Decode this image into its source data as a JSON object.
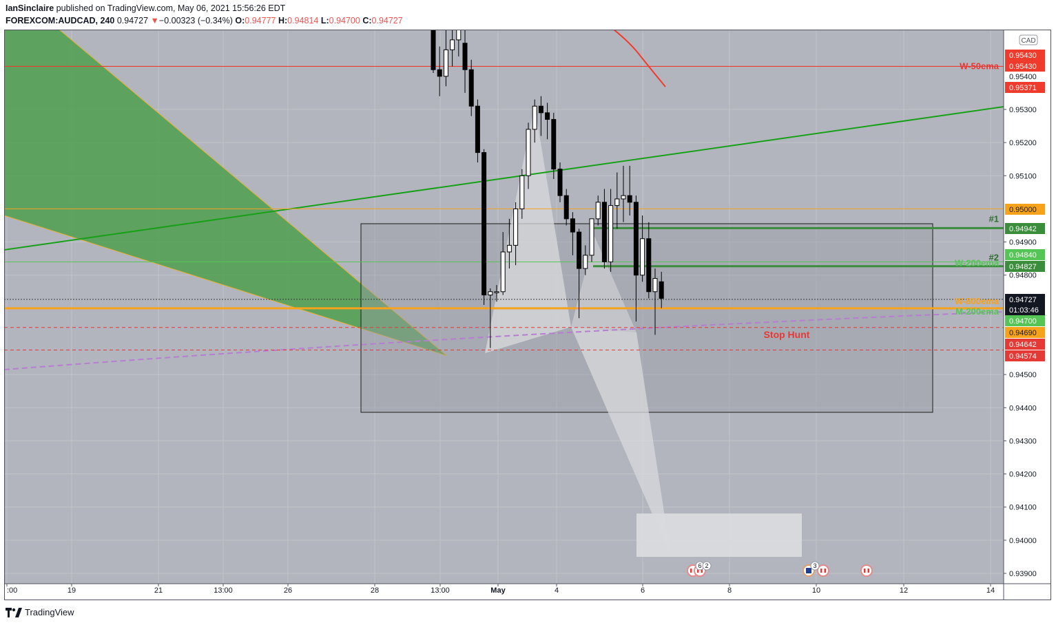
{
  "header": {
    "author": "IanSinclaire",
    "published_text": "published on TradingView.com, May 06, 2021 15:56:26 EDT",
    "symbol": "FOREXCOM:AUDCAD, 240",
    "last": "0.94727",
    "change_arrow": "▼",
    "change": "−0.00323 (−0.34%)",
    "open_label": "O:",
    "open": "0.94777",
    "high_label": "H:",
    "high": "0.94814",
    "low_label": "L:",
    "low": "0.94700",
    "close_label": "C:",
    "close": "0.94727"
  },
  "footer": {
    "brand": "TradingView",
    "logo_icon": "tradingview-logo-icon"
  },
  "colors": {
    "chart_bg": "#b2b5be",
    "frame_bg": "#ffffff",
    "up_candle": "#ffffff",
    "down_candle": "#000000",
    "red_line": "#ef3b2c",
    "green_line": "#16a016",
    "orange_line": "#f7a21b",
    "dark_green": "#3a8d3a",
    "light_green": "#55c655",
    "purple_dash": "#b67dd1",
    "green_wedge": "#4f9f4f"
  },
  "chart_data": {
    "type": "candlestick",
    "currency_badge": "CAD",
    "y_range": [
      0.9385,
      0.9555
    ],
    "y_ticks": [
      "0.95300",
      "0.95200",
      "0.95100",
      "0.94900",
      "0.94800",
      "0.94500",
      "0.94400",
      "0.94300",
      "0.94200",
      "0.94100",
      "0.94000",
      "0.93900"
    ],
    "x_ticks": [
      ":00",
      "19",
      "21",
      "13:00",
      "26",
      "28",
      "13:00",
      "May",
      "4",
      "6",
      "8",
      "10",
      "12",
      "14"
    ],
    "candles": [
      {
        "o": 0.9556,
        "h": 0.9565,
        "l": 0.9541,
        "c": 0.9542
      },
      {
        "o": 0.9542,
        "h": 0.9549,
        "l": 0.9534,
        "c": 0.954
      },
      {
        "o": 0.954,
        "h": 0.9558,
        "l": 0.9537,
        "c": 0.9548
      },
      {
        "o": 0.9548,
        "h": 0.9556,
        "l": 0.9543,
        "c": 0.9551
      },
      {
        "o": 0.9551,
        "h": 0.9556,
        "l": 0.9546,
        "c": 0.9554
      },
      {
        "o": 0.955,
        "h": 0.9558,
        "l": 0.9535,
        "c": 0.9542
      },
      {
        "o": 0.9542,
        "h": 0.9545,
        "l": 0.9528,
        "c": 0.9531
      },
      {
        "o": 0.9531,
        "h": 0.9533,
        "l": 0.9514,
        "c": 0.9517
      },
      {
        "o": 0.9517,
        "h": 0.9518,
        "l": 0.9471,
        "c": 0.9474
      },
      {
        "o": 0.9474,
        "h": 0.9476,
        "l": 0.9458,
        "c": 0.9475
      },
      {
        "o": 0.9475,
        "h": 0.9477,
        "l": 0.9472,
        "c": 0.9475
      },
      {
        "o": 0.9475,
        "h": 0.9493,
        "l": 0.9474,
        "c": 0.9487
      },
      {
        "o": 0.9487,
        "h": 0.9497,
        "l": 0.9482,
        "c": 0.9489
      },
      {
        "o": 0.9489,
        "h": 0.9502,
        "l": 0.9483,
        "c": 0.95
      },
      {
        "o": 0.95,
        "h": 0.9512,
        "l": 0.9497,
        "c": 0.951
      },
      {
        "o": 0.951,
        "h": 0.9526,
        "l": 0.9506,
        "c": 0.9524
      },
      {
        "o": 0.9524,
        "h": 0.9533,
        "l": 0.952,
        "c": 0.9531
      },
      {
        "o": 0.9531,
        "h": 0.9534,
        "l": 0.9522,
        "c": 0.9529
      },
      {
        "o": 0.9529,
        "h": 0.9532,
        "l": 0.9521,
        "c": 0.9527
      },
      {
        "o": 0.9527,
        "h": 0.9529,
        "l": 0.9509,
        "c": 0.9512
      },
      {
        "o": 0.9512,
        "h": 0.9514,
        "l": 0.9502,
        "c": 0.9504
      },
      {
        "o": 0.9504,
        "h": 0.9506,
        "l": 0.9495,
        "c": 0.9497
      },
      {
        "o": 0.9497,
        "h": 0.9499,
        "l": 0.9486,
        "c": 0.9493
      },
      {
        "o": 0.9493,
        "h": 0.9494,
        "l": 0.9467,
        "c": 0.9482
      },
      {
        "o": 0.9482,
        "h": 0.9489,
        "l": 0.948,
        "c": 0.9486
      },
      {
        "o": 0.9486,
        "h": 0.9497,
        "l": 0.9484,
        "c": 0.9497
      },
      {
        "o": 0.9497,
        "h": 0.9504,
        "l": 0.9495,
        "c": 0.9502
      },
      {
        "o": 0.9502,
        "h": 0.9506,
        "l": 0.9482,
        "c": 0.9484
      },
      {
        "o": 0.9484,
        "h": 0.9506,
        "l": 0.9481,
        "c": 0.9501
      },
      {
        "o": 0.9501,
        "h": 0.9511,
        "l": 0.9494,
        "c": 0.9503
      },
      {
        "o": 0.9503,
        "h": 0.9513,
        "l": 0.9496,
        "c": 0.9504
      },
      {
        "o": 0.9504,
        "h": 0.9513,
        "l": 0.9498,
        "c": 0.9502
      },
      {
        "o": 0.9502,
        "h": 0.9504,
        "l": 0.9466,
        "c": 0.948
      },
      {
        "o": 0.948,
        "h": 0.9498,
        "l": 0.9478,
        "c": 0.9491
      },
      {
        "o": 0.9491,
        "h": 0.9496,
        "l": 0.9473,
        "c": 0.9475
      },
      {
        "o": 0.9475,
        "h": 0.9482,
        "l": 0.9462,
        "c": 0.9479
      },
      {
        "o": 0.9478,
        "h": 0.9481,
        "l": 0.947,
        "c": 0.9473
      }
    ],
    "lines": [
      {
        "name": "W-50ema",
        "price": 0.9543,
        "color": "#ef3b2c"
      },
      {
        "name": "#1",
        "price": 0.94942,
        "color": "#3a8d3a"
      },
      {
        "name": "#2",
        "price": 0.94827,
        "color": "#3a8d3a"
      },
      {
        "name": "W-200ema",
        "price": 0.9484,
        "color": "#55c655"
      },
      {
        "name": "W-800ema",
        "price": 0.947,
        "color": "#f7a21b"
      },
      {
        "name": "M-200ema",
        "price": 0.947,
        "color": "#55c655"
      },
      {
        "name": "",
        "price": 0.95,
        "color": "#f7a21b"
      },
      {
        "name": "Stop Hunt",
        "price": 0.94642,
        "color": "#e53935"
      },
      {
        "name": "",
        "price": 0.94574,
        "color": "#e53935"
      }
    ],
    "price_labels": [
      {
        "text": "0.95430",
        "bg": "#ef3b2c",
        "fg": "#ffffff"
      },
      {
        "text": "0.95430",
        "bg": "#ef3b2c",
        "fg": "#ffffff"
      },
      {
        "text": "0.95400",
        "bg": "",
        "fg": "#131722"
      },
      {
        "text": "0.95371",
        "bg": "#ef3b2c",
        "fg": "#ffffff"
      },
      {
        "text": "0.95000",
        "bg": "#f7a21b",
        "fg": "#131722"
      },
      {
        "text": "0.94942",
        "bg": "#3a8d3a",
        "fg": "#ffffff"
      },
      {
        "text": "0.94840",
        "bg": "#55c655",
        "fg": "#ffffff"
      },
      {
        "text": "0.94827",
        "bg": "#3a8d3a",
        "fg": "#ffffff"
      },
      {
        "text": "0.94727",
        "bg": "#131722",
        "fg": "#ffffff"
      },
      {
        "text": "01:03:46",
        "bg": "#131722",
        "fg": "#ffffff"
      },
      {
        "text": "0.94700",
        "bg": "#55c655",
        "fg": "#ffffff"
      },
      {
        "text": "0.94690",
        "bg": "#f7a21b",
        "fg": "#131722"
      },
      {
        "text": "0.94642",
        "bg": "#e53935",
        "fg": "#ffffff"
      },
      {
        "text": "0.94574",
        "bg": "#e53935",
        "fg": "#ffffff"
      }
    ],
    "annotations": [
      "W-50ema",
      "#1",
      "#2",
      "W-200ema",
      "W-800ema",
      "M-200ema",
      "Stop Hunt"
    ],
    "event_badges": [
      "6",
      "2",
      "3"
    ],
    "grid": true
  }
}
